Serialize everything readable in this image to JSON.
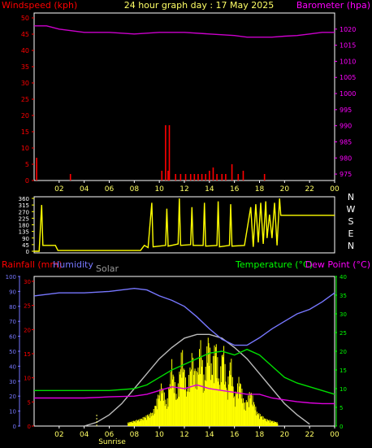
{
  "header": {
    "left_axis_title": "Windspeed (kph)",
    "title": "24 hour graph day : 17 May 2025",
    "right_axis_title": "Barometer (hpa)"
  },
  "bottom_header": {
    "rainfall": "Rainfall (mm)",
    "humidity": "Humidity",
    "solar": "Solar",
    "temperature": "Temperature (°C)",
    "dewpoint": "Dew Point (°C)"
  },
  "labels": {
    "sunrise": "Sunrise",
    "compass": [
      "N",
      "W",
      "S",
      "E",
      "N"
    ]
  },
  "colors": {
    "windspeed": "#ff0000",
    "barometer": "#cc00cc",
    "direction": "#ffff00",
    "rainfall": "#ff0000",
    "humidity": "#7777ff",
    "solar_curve": "#bbbbbb",
    "solar": "#ffff00",
    "temperature": "#00dd00",
    "dewpoint": "#dd00dd",
    "axis_green": "#00ff00"
  },
  "chart_data": [
    {
      "type": "bar+line",
      "title": "24 hour graph day : 17 May 2025",
      "x_ticks": [
        "02",
        "04",
        "06",
        "08",
        "10",
        "12",
        "14",
        "16",
        "18",
        "20",
        "22",
        "00"
      ],
      "left_axis": {
        "label": "Windspeed (kph)",
        "ticks": [
          0,
          5,
          10,
          15,
          20,
          25,
          30,
          35,
          40,
          45,
          50
        ],
        "ylim": [
          0,
          50
        ]
      },
      "right_axis": {
        "label": "Barometer (hpa)",
        "ticks": [
          975,
          980,
          985,
          990,
          995,
          1000,
          1005,
          1010,
          1015,
          1020
        ],
        "ylim": [
          973,
          1025
        ]
      },
      "windspeed_bars": [
        [
          0.2,
          7
        ],
        [
          2.9,
          2
        ],
        [
          10.2,
          3
        ],
        [
          10.5,
          17
        ],
        [
          10.7,
          3
        ],
        [
          10.8,
          17
        ],
        [
          11.3,
          2
        ],
        [
          11.7,
          2
        ],
        [
          12.1,
          2
        ],
        [
          12.5,
          2
        ],
        [
          12.8,
          2
        ],
        [
          13.1,
          2
        ],
        [
          13.4,
          2
        ],
        [
          13.7,
          2
        ],
        [
          14.0,
          3
        ],
        [
          14.3,
          4
        ],
        [
          14.6,
          2
        ],
        [
          15.0,
          2
        ],
        [
          15.3,
          2
        ],
        [
          15.8,
          5
        ],
        [
          16.3,
          2
        ],
        [
          16.7,
          3
        ],
        [
          18.4,
          2
        ]
      ],
      "barometer": [
        [
          0,
          1021
        ],
        [
          1,
          1021
        ],
        [
          2,
          1020
        ],
        [
          3,
          1019.5
        ],
        [
          4,
          1019
        ],
        [
          6,
          1019
        ],
        [
          8,
          1018.5
        ],
        [
          10,
          1019
        ],
        [
          12,
          1019
        ],
        [
          14,
          1018.5
        ],
        [
          16,
          1018
        ],
        [
          17,
          1017.5
        ],
        [
          18,
          1017.5
        ],
        [
          19,
          1017.5
        ],
        [
          20,
          1017.8
        ],
        [
          21,
          1018
        ],
        [
          22,
          1018.5
        ],
        [
          23,
          1019
        ],
        [
          24,
          1019
        ]
      ]
    },
    {
      "type": "line",
      "x_ticks": [
        "02",
        "04",
        "06",
        "08",
        "10",
        "12",
        "14",
        "16",
        "18",
        "20",
        "22",
        "00"
      ],
      "left_axis": {
        "label": "",
        "ticks": [
          0,
          45,
          90,
          135,
          180,
          225,
          270,
          315,
          360
        ],
        "ylim": [
          0,
          360
        ]
      },
      "right_axis_labels": [
        "N",
        "W",
        "S",
        "E",
        "N"
      ],
      "wind_direction": [
        [
          0,
          0
        ],
        [
          0.4,
          0
        ],
        [
          0.6,
          315
        ],
        [
          0.7,
          40
        ],
        [
          1.7,
          40
        ],
        [
          1.9,
          5
        ],
        [
          4,
          5
        ],
        [
          6,
          5
        ],
        [
          8.5,
          5
        ],
        [
          8.8,
          40
        ],
        [
          9.1,
          25
        ],
        [
          9.4,
          330
        ],
        [
          9.5,
          30
        ],
        [
          10.5,
          40
        ],
        [
          10.6,
          290
        ],
        [
          10.7,
          35
        ],
        [
          11.5,
          50
        ],
        [
          11.6,
          360
        ],
        [
          11.7,
          40
        ],
        [
          12.5,
          45
        ],
        [
          12.6,
          300
        ],
        [
          12.7,
          40
        ],
        [
          13.5,
          40
        ],
        [
          13.6,
          330
        ],
        [
          13.7,
          35
        ],
        [
          14.6,
          40
        ],
        [
          14.7,
          340
        ],
        [
          14.8,
          30
        ],
        [
          15.6,
          40
        ],
        [
          15.7,
          320
        ],
        [
          15.8,
          35
        ],
        [
          16.8,
          40
        ],
        [
          17.3,
          300
        ],
        [
          17.5,
          30
        ],
        [
          17.7,
          320
        ],
        [
          17.9,
          60
        ],
        [
          18.1,
          330
        ],
        [
          18.3,
          50
        ],
        [
          18.5,
          340
        ],
        [
          18.6,
          90
        ],
        [
          18.8,
          250
        ],
        [
          19.0,
          90
        ],
        [
          19.2,
          330
        ],
        [
          19.4,
          40
        ],
        [
          19.6,
          360
        ],
        [
          19.7,
          245
        ],
        [
          21,
          245
        ],
        [
          23,
          245
        ],
        [
          24,
          245
        ]
      ]
    },
    {
      "type": "line+area",
      "x_ticks": [
        "02",
        "04",
        "06",
        "08",
        "10",
        "12",
        "14",
        "16",
        "18",
        "20",
        "22",
        "00"
      ],
      "left_axis_humidity": {
        "label": "Humidity",
        "ticks": [
          0,
          10,
          20,
          30,
          40,
          50,
          60,
          70,
          80,
          90,
          100
        ],
        "ylim": [
          0,
          100
        ]
      },
      "left_axis_rainfall": {
        "label": "Rainfall (mm)",
        "ticks": [
          0,
          5,
          10,
          15,
          20,
          25,
          30
        ],
        "ylim": [
          0,
          30
        ]
      },
      "right_axis_temperature": {
        "label": "Temperature (°C)",
        "ticks": [
          0,
          5,
          10,
          15,
          20,
          25,
          30,
          35,
          40
        ],
        "ylim": [
          0,
          40
        ]
      },
      "series": [
        {
          "name": "Humidity",
          "values": [
            [
              0,
              87
            ],
            [
              2,
              89
            ],
            [
              4,
              89
            ],
            [
              6,
              90
            ],
            [
              8,
              92
            ],
            [
              9,
              91
            ],
            [
              10,
              87
            ],
            [
              11,
              84
            ],
            [
              12,
              80
            ],
            [
              13,
              73
            ],
            [
              14,
              65
            ],
            [
              15,
              58
            ],
            [
              16,
              54
            ],
            [
              17,
              54
            ],
            [
              18,
              59
            ],
            [
              19,
              65
            ],
            [
              20,
              70
            ],
            [
              21,
              75
            ],
            [
              22,
              78
            ],
            [
              23,
              83
            ],
            [
              24,
              89
            ]
          ]
        },
        {
          "name": "Temperature (°C)",
          "values": [
            [
              0,
              9.5
            ],
            [
              2,
              9.5
            ],
            [
              4,
              9.5
            ],
            [
              6,
              9.5
            ],
            [
              8,
              10
            ],
            [
              9,
              11
            ],
            [
              10,
              13
            ],
            [
              11,
              15
            ],
            [
              12,
              16.5
            ],
            [
              13,
              18
            ],
            [
              14,
              19.5
            ],
            [
              15,
              20
            ],
            [
              16,
              19
            ],
            [
              17,
              20.5
            ],
            [
              18,
              19
            ],
            [
              19,
              16
            ],
            [
              20,
              13
            ],
            [
              21,
              11.5
            ],
            [
              22,
              10.5
            ],
            [
              23,
              9.5
            ],
            [
              24,
              8.5
            ]
          ]
        },
        {
          "name": "Dew Point (°C)",
          "values": [
            [
              0,
              7.5
            ],
            [
              2,
              7.5
            ],
            [
              4,
              7.5
            ],
            [
              6,
              7.8
            ],
            [
              8,
              8
            ],
            [
              9,
              8.5
            ],
            [
              10,
              9.5
            ],
            [
              11,
              10.5
            ],
            [
              12,
              10
            ],
            [
              13,
              11
            ],
            [
              14,
              10
            ],
            [
              15,
              9.5
            ],
            [
              16,
              9
            ],
            [
              17,
              8.5
            ],
            [
              18,
              8.5
            ],
            [
              19,
              7.5
            ],
            [
              20,
              7
            ],
            [
              21,
              6.5
            ],
            [
              22,
              6.2
            ],
            [
              23,
              6
            ],
            [
              24,
              6
            ]
          ]
        },
        {
          "name": "Solar",
          "values": [
            [
              4.0,
              0
            ],
            [
              5.0,
              1
            ],
            [
              6.0,
              3
            ],
            [
              7.0,
              6
            ],
            [
              8.0,
              10
            ],
            [
              9.0,
              14
            ],
            [
              10.0,
              18
            ],
            [
              11.0,
              21
            ],
            [
              12.0,
              23.5
            ],
            [
              13.0,
              24.5
            ],
            [
              14.0,
              24.5
            ],
            [
              15.0,
              23.5
            ],
            [
              16.0,
              21
            ],
            [
              17.0,
              18
            ],
            [
              18.0,
              14
            ],
            [
              19.0,
              10
            ],
            [
              20.0,
              6
            ],
            [
              21.0,
              3
            ],
            [
              22.0,
              0.5
            ]
          ]
        }
      ],
      "solar_bars_peak": [
        [
          7.5,
          1
        ],
        [
          8.5,
          2
        ],
        [
          9.5,
          4
        ],
        [
          10.2,
          12
        ],
        [
          10.6,
          6
        ],
        [
          11.0,
          18
        ],
        [
          11.4,
          8
        ],
        [
          11.8,
          22
        ],
        [
          12.2,
          10
        ],
        [
          12.6,
          20
        ],
        [
          13.0,
          14
        ],
        [
          13.3,
          24
        ],
        [
          13.6,
          12
        ],
        [
          13.9,
          26
        ],
        [
          14.2,
          16
        ],
        [
          14.5,
          25
        ],
        [
          14.8,
          12
        ],
        [
          15.1,
          24
        ],
        [
          15.4,
          10
        ],
        [
          15.7,
          20
        ],
        [
          16.0,
          8
        ],
        [
          16.4,
          14
        ],
        [
          16.8,
          6
        ],
        [
          17.3,
          10
        ],
        [
          17.8,
          4
        ],
        [
          18.5,
          2
        ],
        [
          19.5,
          1
        ]
      ],
      "sunrise_hour": 5.0
    }
  ]
}
